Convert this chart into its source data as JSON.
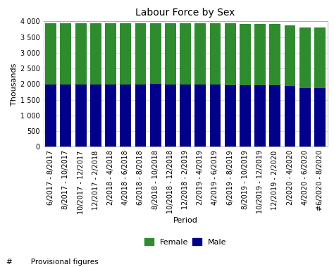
{
  "title": "Labour Force by Sex",
  "xlabel": "Period",
  "ylabel": "Thousands",
  "ylim": [
    0,
    4000
  ],
  "yticks": [
    0,
    500,
    1000,
    1500,
    2000,
    2500,
    3000,
    3500,
    4000
  ],
  "female_color": "#2e8b2e",
  "male_color": "#00008b",
  "background_color": "#ffffff",
  "grid_color": "#dddddd",
  "footnote": "#        Provisional figures",
  "categories": [
    "6/2017 - 8/2017",
    "8/2017 - 10/2017",
    "10/2017 - 12/2017",
    "12/2017 - 2/2018",
    "2/2018 - 4/2018",
    "4/2018 - 6/2018",
    "6/2018 - 8/2018",
    "8/2018 - 10/2018",
    "10/2018 - 12/2018",
    "12/2018 - 2/2019",
    "2/2019 - 4/2019",
    "4/2019 - 6/2019",
    "6/2019 - 8/2019",
    "8/2019 - 10/2019",
    "10/2019 - 12/2019",
    "12/2019 - 2/2020",
    "2/2020 - 4/2020",
    "4/2020 - 6/2020",
    "#6/2020 - 8/2020"
  ],
  "male_values": [
    1980,
    1990,
    1990,
    1990,
    1995,
    1995,
    1990,
    2000,
    1995,
    1985,
    1980,
    1975,
    1970,
    1965,
    1960,
    1960,
    1940,
    1880,
    1870
  ],
  "female_values": [
    1960,
    1960,
    1960,
    1955,
    1955,
    1950,
    1960,
    1950,
    1945,
    1960,
    1965,
    1965,
    1970,
    1960,
    1960,
    1950,
    1940,
    1920,
    1930
  ],
  "legend_female": "Female",
  "legend_male": "Male",
  "title_fontsize": 10,
  "axis_label_fontsize": 8,
  "tick_fontsize": 7,
  "legend_fontsize": 8,
  "footnote_fontsize": 7.5
}
